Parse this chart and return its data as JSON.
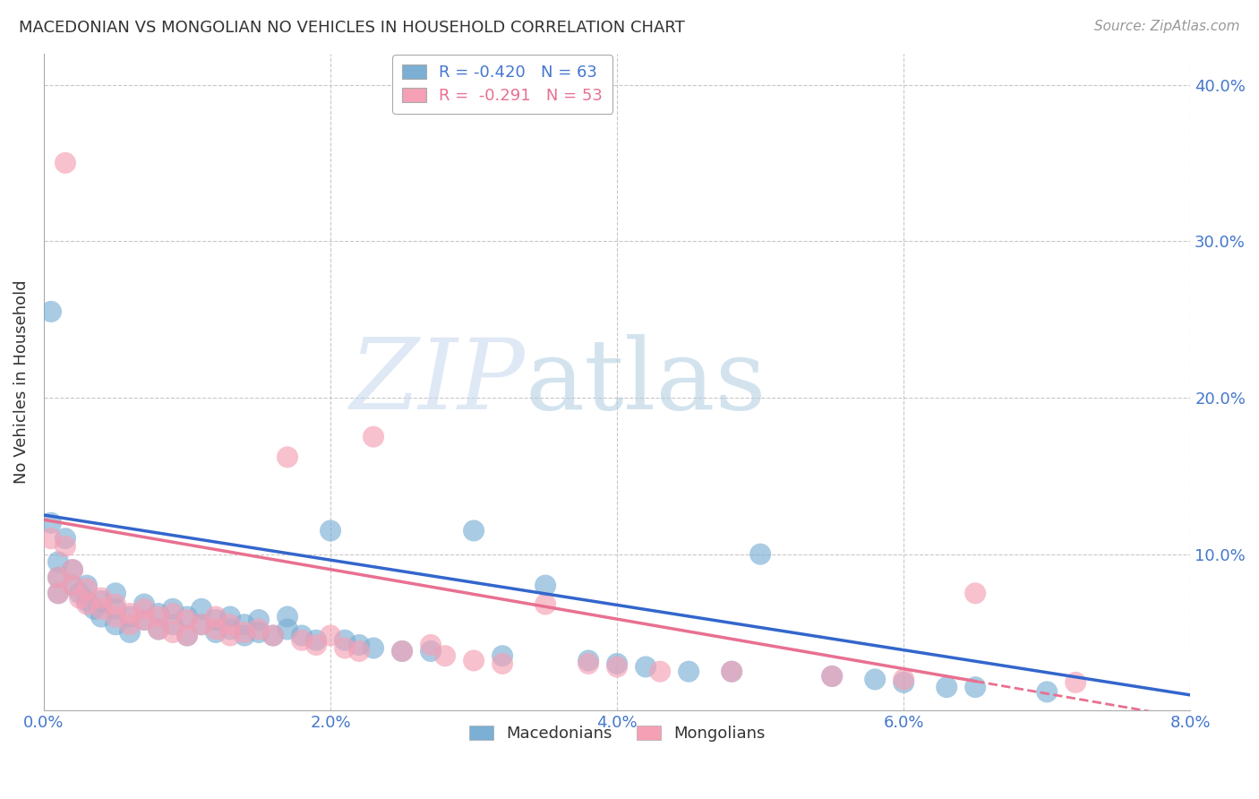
{
  "title": "MACEDONIAN VS MONGOLIAN NO VEHICLES IN HOUSEHOLD CORRELATION CHART",
  "source": "Source: ZipAtlas.com",
  "ylabel": "No Vehicles in Household",
  "xlim": [
    0.0,
    0.08
  ],
  "ylim": [
    0.0,
    0.42
  ],
  "yticks": [
    0.0,
    0.1,
    0.2,
    0.3,
    0.4
  ],
  "ytick_labels": [
    "",
    "10.0%",
    "20.0%",
    "30.0%",
    "40.0%"
  ],
  "xticks": [
    0.0,
    0.02,
    0.04,
    0.06,
    0.08
  ],
  "xtick_labels": [
    "0.0%",
    "2.0%",
    "4.0%",
    "6.0%",
    "8.0%"
  ],
  "legend_entries": [
    {
      "label": "R = -0.420   N = 63",
      "color": "#a8c4e0"
    },
    {
      "label": "R =  -0.291   N = 53",
      "color": "#f4a0b0"
    }
  ],
  "legend_labels_bottom": [
    "Macedonians",
    "Mongolians"
  ],
  "macedonian_color": "#7bafd4",
  "mongolian_color": "#f5a0b5",
  "blue_line_color": "#3366cc",
  "pink_line_color": "#e87090",
  "watermark_zip": "ZIP",
  "watermark_atlas": "atlas",
  "background_color": "#ffffff",
  "grid_color": "#c8c8c8",
  "mac_x": [
    0.0005,
    0.001,
    0.001,
    0.001,
    0.0015,
    0.002,
    0.002,
    0.0025,
    0.003,
    0.003,
    0.0035,
    0.004,
    0.004,
    0.005,
    0.005,
    0.005,
    0.006,
    0.006,
    0.007,
    0.007,
    0.008,
    0.008,
    0.009,
    0.009,
    0.01,
    0.01,
    0.011,
    0.011,
    0.012,
    0.012,
    0.013,
    0.013,
    0.014,
    0.014,
    0.015,
    0.015,
    0.016,
    0.017,
    0.017,
    0.018,
    0.019,
    0.02,
    0.021,
    0.022,
    0.023,
    0.025,
    0.027,
    0.03,
    0.032,
    0.035,
    0.038,
    0.04,
    0.042,
    0.045,
    0.048,
    0.05,
    0.055,
    0.058,
    0.06,
    0.063,
    0.065,
    0.07,
    0.0005
  ],
  "mac_y": [
    0.12,
    0.075,
    0.085,
    0.095,
    0.11,
    0.08,
    0.09,
    0.075,
    0.07,
    0.08,
    0.065,
    0.06,
    0.07,
    0.055,
    0.065,
    0.075,
    0.05,
    0.06,
    0.058,
    0.068,
    0.052,
    0.062,
    0.055,
    0.065,
    0.048,
    0.06,
    0.055,
    0.065,
    0.05,
    0.058,
    0.052,
    0.06,
    0.048,
    0.055,
    0.05,
    0.058,
    0.048,
    0.052,
    0.06,
    0.048,
    0.045,
    0.115,
    0.045,
    0.042,
    0.04,
    0.038,
    0.038,
    0.115,
    0.035,
    0.08,
    0.032,
    0.03,
    0.028,
    0.025,
    0.025,
    0.1,
    0.022,
    0.02,
    0.018,
    0.015,
    0.015,
    0.012,
    0.255
  ],
  "mon_x": [
    0.0005,
    0.001,
    0.001,
    0.0015,
    0.002,
    0.002,
    0.0025,
    0.003,
    0.003,
    0.004,
    0.004,
    0.005,
    0.005,
    0.006,
    0.006,
    0.007,
    0.007,
    0.008,
    0.008,
    0.009,
    0.009,
    0.01,
    0.01,
    0.011,
    0.012,
    0.012,
    0.013,
    0.013,
    0.014,
    0.015,
    0.016,
    0.017,
    0.018,
    0.019,
    0.02,
    0.021,
    0.022,
    0.023,
    0.025,
    0.027,
    0.028,
    0.03,
    0.032,
    0.035,
    0.038,
    0.04,
    0.043,
    0.048,
    0.055,
    0.06,
    0.065,
    0.072,
    0.0015
  ],
  "mon_y": [
    0.11,
    0.075,
    0.085,
    0.105,
    0.08,
    0.09,
    0.072,
    0.068,
    0.078,
    0.065,
    0.072,
    0.06,
    0.068,
    0.055,
    0.062,
    0.058,
    0.065,
    0.052,
    0.06,
    0.05,
    0.062,
    0.048,
    0.058,
    0.055,
    0.052,
    0.06,
    0.048,
    0.055,
    0.05,
    0.052,
    0.048,
    0.162,
    0.045,
    0.042,
    0.048,
    0.04,
    0.038,
    0.175,
    0.038,
    0.042,
    0.035,
    0.032,
    0.03,
    0.068,
    0.03,
    0.028,
    0.025,
    0.025,
    0.022,
    0.02,
    0.075,
    0.018,
    0.35
  ],
  "blue_line_x0": 0.0,
  "blue_line_y0": 0.125,
  "blue_line_x1": 0.08,
  "blue_line_y1": 0.01,
  "pink_line_x0": 0.0,
  "pink_line_y0": 0.122,
  "pink_line_x1": 0.08,
  "pink_line_y1": -0.005,
  "pink_line_solid_end": 0.065,
  "pink_line_dash_end": 0.08
}
